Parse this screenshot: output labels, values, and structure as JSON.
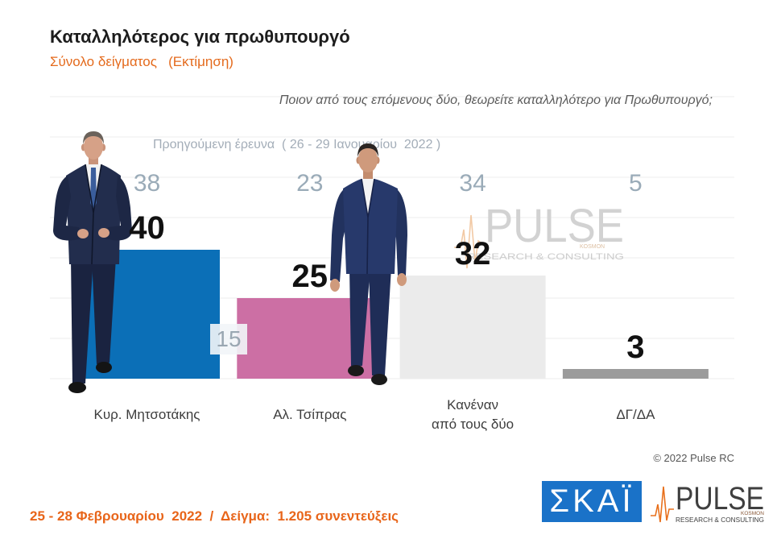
{
  "header": {
    "title": "Καταλληλότερος για πρωθυπουργό",
    "subtitle": "Σύνολο δείγματος   (Εκτίμηση)"
  },
  "question": "Ποιον από τους επόμενους δύο, θεωρείτε καταλληλότερο για Πρωθυπουργό;",
  "chart_data": {
    "type": "bar",
    "categories": [
      "Κυρ. Μητσοτάκης",
      "Αλ. Τσίπρας",
      "Κανέναν\nαπό τους δύο",
      "ΔΓ/ΔΑ"
    ],
    "series": [
      {
        "values": [
          40,
          25,
          32,
          3
        ],
        "colors": [
          "#0b6fb7",
          "#cc6fa4",
          "#ebebeb",
          "#9b9b9b"
        ]
      },
      {
        "name": "Προηγούμενη έρευνα  ( 26 - 29 Ιανουαρίου  2022 )",
        "values": [
          38,
          23,
          34,
          5
        ]
      }
    ],
    "annotations": [
      {
        "text": "15"
      }
    ],
    "ylim": [
      0,
      100
    ],
    "grid": true
  },
  "watermark": {
    "brand": "PULSE",
    "sub": "KOSMON",
    "tagline": "RESEARCH & CONSULTING"
  },
  "footer": {
    "copyright": "© 2022 Pulse RC",
    "sample": "25 - 28 Φεβρουαρίου  2022  /  Δείγμα:  1.205 συνεντεύξεις"
  },
  "logos": {
    "skai": "ΣΚΑΪ",
    "pulse": {
      "brand": "PULSE",
      "sub": "KOSMON",
      "tagline": "RESEARCH & CONSULTING"
    }
  },
  "colors": {
    "accent": "#e46a1c",
    "brand_orange": "#e8701c",
    "skai_blue": "#1a72c8",
    "previous_values": "#9aabb8"
  }
}
